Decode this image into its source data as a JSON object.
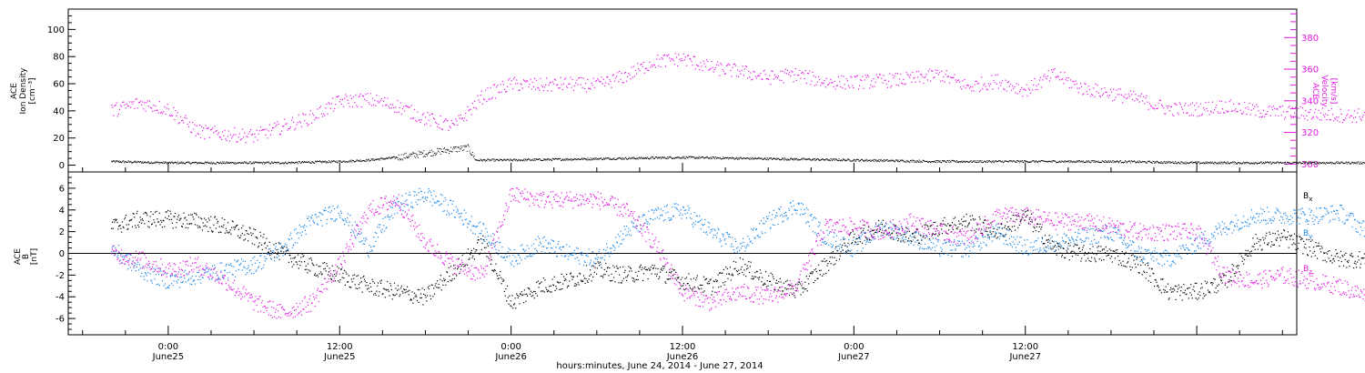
{
  "chart_data": [
    {
      "type": "scatter",
      "panel": "top",
      "ylabel_left": [
        "ACE",
        "Ion Density",
        "[cm⁻³]"
      ],
      "ylabel_right": [
        "ACE",
        "Velocity",
        "[km/s]"
      ],
      "ylim_left": [
        -5,
        115
      ],
      "yticks_left": [
        0,
        20,
        40,
        60,
        80,
        100
      ],
      "ylim_right": [
        295,
        398
      ],
      "yticks_right": [
        300,
        320,
        340,
        360,
        380
      ],
      "series": [
        {
          "axis": "left",
          "color": "#000000",
          "x": [
            -4,
            0,
            4,
            8,
            12,
            14,
            16,
            18,
            20,
            21,
            21.5,
            24,
            30,
            36,
            42,
            48,
            54,
            60,
            66,
            72,
            78,
            84
          ],
          "values": [
            3,
            2,
            2,
            2,
            3,
            4,
            6,
            9,
            12,
            13,
            4,
            4,
            5,
            6,
            5,
            4,
            3,
            3,
            3,
            2,
            2,
            2
          ]
        },
        {
          "axis": "right",
          "color": "#e21be2",
          "x": [
            -4,
            -2,
            0,
            2,
            4,
            6,
            8,
            10,
            12,
            14,
            16,
            18,
            20,
            22,
            24,
            26,
            28,
            30,
            32,
            34,
            36,
            38,
            40,
            42,
            44,
            46,
            48,
            50,
            52,
            54,
            56,
            58,
            60,
            62,
            64,
            66,
            68,
            70,
            72,
            74,
            76,
            78,
            80,
            82,
            84
          ],
          "values": [
            334,
            339,
            335,
            321,
            319,
            318,
            324,
            330,
            340,
            341,
            337,
            329,
            324,
            343,
            351,
            350,
            351,
            350,
            356,
            365,
            367,
            361,
            359,
            355,
            357,
            352,
            352,
            353,
            354,
            357,
            349,
            353,
            347,
            357,
            348,
            345,
            341,
            335,
            335,
            337,
            334,
            333,
            332,
            331,
            331
          ]
        }
      ]
    },
    {
      "type": "scatter",
      "panel": "bottom",
      "ylabel": [
        "ACE",
        "B",
        "[nT]"
      ],
      "ylim": [
        -7.5,
        7.5
      ],
      "yticks": [
        -6,
        -4,
        -2,
        0,
        2,
        4,
        6
      ],
      "legend": [
        "Bx",
        "By",
        "Bz"
      ],
      "series": [
        {
          "name": "Bx",
          "color": "#000000",
          "x": [
            -4,
            -2,
            0,
            2,
            4,
            6,
            8,
            10,
            12,
            14,
            16,
            18,
            20,
            22,
            24,
            26,
            28,
            30,
            32,
            34,
            36,
            38,
            40,
            42,
            44,
            46,
            48,
            50,
            52,
            54,
            56,
            58,
            60,
            62,
            64,
            66,
            68,
            70,
            72,
            74,
            76,
            78,
            80,
            82,
            84
          ],
          "values": [
            2.5,
            3.2,
            3.2,
            3,
            2.5,
            1.5,
            0,
            -1.2,
            -2,
            -3,
            -3.5,
            -4,
            -1.5,
            1,
            -4.5,
            -3,
            -2.5,
            -1.5,
            -2,
            -1.5,
            -2.5,
            -3,
            -1,
            -2.5,
            -3.5,
            -1,
            1.5,
            2.5,
            1.5,
            2.5,
            3,
            2,
            3.5,
            0.5,
            0,
            0,
            -1,
            -3.5,
            -3.5,
            -2.5,
            1,
            1.5,
            0.5,
            -0.5,
            -0.5
          ]
        },
        {
          "name": "By",
          "color": "#1a86e6",
          "x": [
            -4,
            -2,
            0,
            2,
            4,
            6,
            8,
            10,
            12,
            14,
            16,
            18,
            20,
            22,
            24,
            26,
            28,
            30,
            32,
            34,
            36,
            38,
            40,
            42,
            44,
            46,
            48,
            50,
            52,
            54,
            56,
            58,
            60,
            62,
            64,
            66,
            68,
            70,
            72,
            74,
            76,
            78,
            80,
            82,
            84
          ],
          "values": [
            0.5,
            -1.5,
            -2.5,
            -2,
            -1.5,
            -1,
            0.5,
            3,
            4,
            0.5,
            4.5,
            5.5,
            4,
            2,
            -0.5,
            1,
            0,
            -0.5,
            2,
            3.5,
            4,
            2,
            0.5,
            3,
            4.5,
            1.5,
            0.5,
            2.5,
            1.5,
            0.5,
            0.5,
            2,
            0.5,
            1,
            1.5,
            2,
            0,
            -0.5,
            1,
            2.5,
            3.5,
            3.5,
            3.5,
            3.8,
            2
          ]
        },
        {
          "name": "Bz",
          "color": "#e21be2",
          "x": [
            -4,
            -2,
            0,
            2,
            4,
            6,
            8,
            10,
            12,
            14,
            16,
            18,
            20,
            22,
            24,
            26,
            28,
            30,
            32,
            34,
            36,
            38,
            40,
            42,
            44,
            46,
            48,
            50,
            52,
            54,
            56,
            58,
            60,
            62,
            64,
            66,
            68,
            70,
            72,
            74,
            76,
            78,
            80,
            82,
            84
          ],
          "values": [
            0,
            -0.5,
            -1.5,
            -1,
            -2.5,
            -4.5,
            -5.5,
            -4.5,
            -1,
            4,
            5,
            1,
            -1,
            -2,
            5.5,
            5,
            5,
            5,
            4,
            1,
            -3.5,
            -4.5,
            -3.5,
            -4,
            -3,
            2.5,
            2.5,
            2,
            3,
            2,
            1.5,
            3.5,
            3.5,
            3,
            3,
            2.5,
            2,
            2,
            2,
            -2,
            -2.5,
            -2,
            -2.5,
            -3,
            -4
          ]
        }
      ]
    }
  ],
  "xaxis": {
    "label": "hours:minutes, June 24, 2014 - June 27, 2014",
    "ticks": [
      {
        "x": 0,
        "time": "0:00",
        "date": "June25"
      },
      {
        "x": 12,
        "time": "12:00",
        "date": "June25"
      },
      {
        "x": 24,
        "time": "0:00",
        "date": "June26"
      },
      {
        "x": 36,
        "time": "12:00",
        "date": "June26"
      },
      {
        "x": 48,
        "time": "0:00",
        "date": "June27"
      },
      {
        "x": 60,
        "time": "12:00",
        "date": "June27"
      }
    ],
    "xlim": [
      -7,
      79
    ]
  },
  "colors": {
    "density": "#000000",
    "velocity": "#e21be2",
    "bx": "#000000",
    "by": "#1a86e6",
    "bz": "#e21be2"
  }
}
